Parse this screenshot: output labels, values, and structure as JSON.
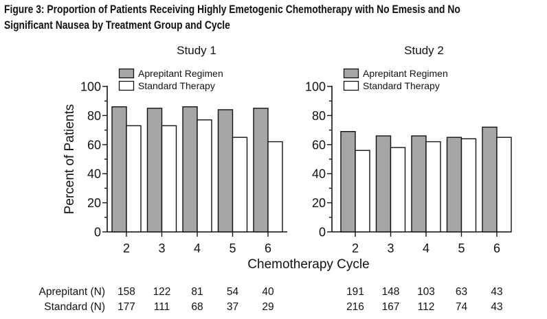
{
  "figure": {
    "title_line1": "Figure 3: Proportion of Patients Receiving Highly Emetogenic Chemotherapy with No Emesis and No",
    "title_line2": "Significant Nausea by Treatment Group and Cycle"
  },
  "chart_data": [
    {
      "type": "bar",
      "title": "Study 1",
      "categories": [
        "2",
        "3",
        "4",
        "5",
        "6"
      ],
      "series": [
        {
          "name": "Aprepitant Regimen",
          "color": "#a6a6a6",
          "values": [
            86,
            85,
            86,
            84,
            85
          ],
          "n": [
            "158",
            "122",
            "81",
            "54",
            "40"
          ]
        },
        {
          "name": "Standard Therapy",
          "color": "#ffffff",
          "values": [
            73,
            73,
            77,
            65,
            62
          ],
          "n": [
            "177",
            "111",
            "68",
            "37",
            "29"
          ]
        }
      ],
      "xlabel": "Chemotherapy Cycle",
      "ylabel": "Percent of Patients",
      "ylim": [
        0,
        100
      ],
      "yticks": [
        "0",
        "20",
        "40",
        "60",
        "80",
        "100"
      ],
      "legend": "top-left"
    },
    {
      "type": "bar",
      "title": "Study 2",
      "categories": [
        "2",
        "3",
        "4",
        "5",
        "6"
      ],
      "series": [
        {
          "name": "Aprepitant Regimen",
          "color": "#a6a6a6",
          "values": [
            69,
            66,
            66,
            65,
            72
          ],
          "n": [
            "191",
            "148",
            "103",
            "63",
            "43"
          ]
        },
        {
          "name": "Standard Therapy",
          "color": "#ffffff",
          "values": [
            56,
            58,
            62,
            64,
            65
          ],
          "n": [
            "216",
            "167",
            "112",
            "74",
            "43"
          ]
        }
      ],
      "xlabel": "Chemotherapy Cycle",
      "ylabel": "Percent of Patients",
      "ylim": [
        0,
        100
      ],
      "yticks": [
        "0",
        "20",
        "40",
        "60",
        "80",
        "100"
      ],
      "legend": "top-left"
    }
  ],
  "n_table": {
    "row1_label": "Aprepitant (N)",
    "row2_label": "Standard (N)"
  }
}
